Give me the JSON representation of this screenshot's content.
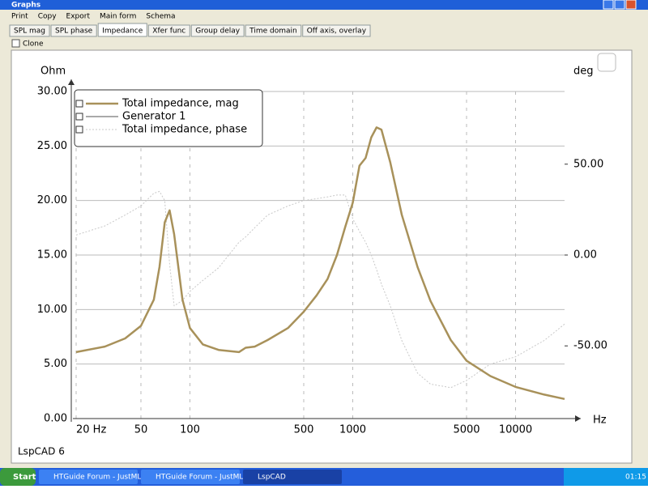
{
  "window": {
    "title": "Graphs",
    "menu": [
      "Print",
      "Copy",
      "Export",
      "Main form",
      "Schema"
    ],
    "tabs": [
      "SPL mag",
      "SPL phase",
      "Impedance",
      "Xfer func",
      "Group delay",
      "Time domain",
      "Off axis, overlay"
    ],
    "active_tab": "Impedance",
    "clone": "Clone",
    "footer": "LspCAD 6"
  },
  "taskbar": {
    "start": "Start",
    "items": [
      "HTGuide Forum - JustML...",
      "HTGuide Forum - JustML...",
      "LspCAD"
    ],
    "active_item": "LspCAD",
    "clock": "01:15"
  },
  "chart_data": {
    "type": "line",
    "x_label": "Hz",
    "y_label": "Ohm",
    "y2_label": "deg",
    "xscale": "log",
    "xlim": [
      20,
      20000
    ],
    "xticks": [
      {
        "value": 20,
        "label": "20 Hz"
      },
      50,
      100,
      500,
      1000,
      5000,
      10000
    ],
    "ylim": [
      0,
      30
    ],
    "yticks": [
      {
        "value": 0,
        "label": "0.00"
      },
      {
        "value": 5,
        "label": "5.00"
      },
      {
        "value": 10,
        "label": "10.00"
      },
      {
        "value": 15,
        "label": "15.00"
      },
      {
        "value": 20,
        "label": "20.00"
      },
      {
        "value": 25,
        "label": "25.00"
      },
      {
        "value": 30,
        "label": "30.00"
      }
    ],
    "y2lim": [
      -90,
      90
    ],
    "y2ticks": [
      {
        "value": 50,
        "label": "50.00"
      },
      {
        "value": 0,
        "label": "0.00"
      },
      {
        "value": -50,
        "label": "-50.00"
      }
    ],
    "grid": true,
    "legend": "upper left",
    "x": [
      20,
      30,
      40,
      50,
      60,
      65,
      70,
      75,
      80,
      90,
      100,
      120,
      150,
      200,
      220,
      250,
      300,
      400,
      500,
      600,
      700,
      800,
      900,
      1000,
      1100,
      1200,
      1300,
      1400,
      1500,
      1700,
      2000,
      2500,
      3000,
      4000,
      5000,
      7000,
      10000,
      15000,
      20000
    ],
    "series": [
      {
        "name": "Total impedance, mag",
        "color": "#a8915a",
        "style": "solid",
        "width": 2.5,
        "values": [
          6.1,
          6.6,
          7.35,
          8.5,
          10.9,
          13.9,
          18,
          19.1,
          16.9,
          10.9,
          8.3,
          6.8,
          6.3,
          6.1,
          6.5,
          6.6,
          7.2,
          8.3,
          9.8,
          11.3,
          12.8,
          15,
          17.6,
          19.8,
          23.2,
          23.9,
          25.8,
          26.7,
          26.5,
          23.5,
          18.7,
          13.9,
          10.8,
          7.2,
          5.3,
          3.9,
          2.9,
          2.2,
          1.8
        ]
      },
      {
        "name": "Generator 1",
        "color": "#555555",
        "style": "solid",
        "width": 1,
        "values": [
          null,
          null,
          null,
          null,
          null,
          null,
          null,
          null,
          null,
          null,
          null,
          null,
          null,
          null,
          null,
          null,
          null,
          null,
          null,
          null,
          null,
          null,
          null,
          null,
          null,
          null,
          null,
          null,
          null,
          null,
          null,
          null,
          null,
          null,
          null,
          null,
          null,
          null,
          null
        ]
      },
      {
        "name": "Total impedance, phase",
        "color": "#c8c8c8",
        "style": "dotted",
        "width": 1,
        "axis": "y2",
        "values": [
          11,
          16,
          22,
          27,
          34,
          35,
          30,
          -5,
          -28,
          -25,
          -20,
          -14,
          -7,
          7,
          10,
          15,
          22,
          27,
          30,
          31,
          32,
          33,
          33,
          20,
          13,
          7,
          0,
          -8,
          -16,
          -28,
          -47,
          -65,
          -71,
          -73,
          -69,
          -60,
          -56,
          -47,
          -38
        ]
      }
    ]
  }
}
